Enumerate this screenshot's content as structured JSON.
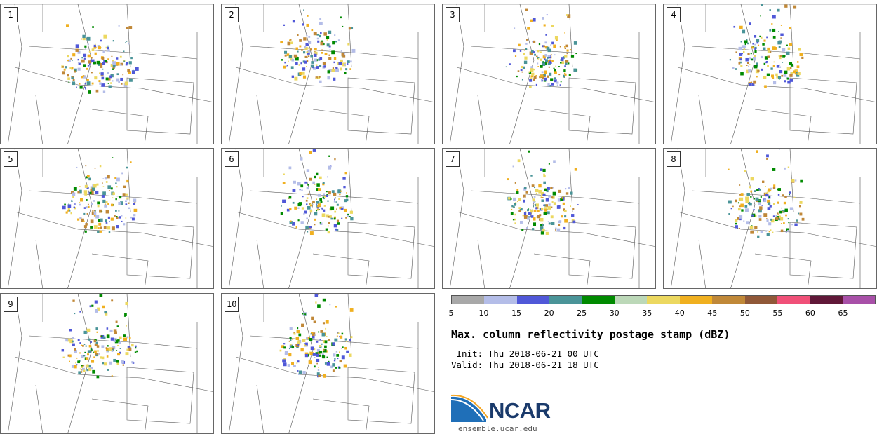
{
  "panels": [
    {
      "label": "1"
    },
    {
      "label": "2"
    },
    {
      "label": "3"
    },
    {
      "label": "4"
    },
    {
      "label": "5"
    },
    {
      "label": "6"
    },
    {
      "label": "7"
    },
    {
      "label": "8"
    },
    {
      "label": "9"
    },
    {
      "label": "10"
    }
  ],
  "colorbar": {
    "ticks": [
      "5",
      "10",
      "15",
      "20",
      "25",
      "30",
      "35",
      "40",
      "45",
      "50",
      "55",
      "60",
      "65"
    ],
    "colors": [
      "#a8a8a8",
      "#b4bde8",
      "#5058d8",
      "#4a9498",
      "#008a00",
      "#bcd8b8",
      "#ecd860",
      "#f0b020",
      "#c08838",
      "#905838",
      "#f05078",
      "#601838",
      "#a850a8"
    ]
  },
  "title": "Max. column reflectivity postage stamp (dBZ)",
  "init": " Init: Thu 2018-06-21 00 UTC",
  "valid": "Valid: Thu 2018-06-21 18 UTC",
  "logo": {
    "text": "NCAR",
    "url": "ensemble.ucar.edu"
  }
}
